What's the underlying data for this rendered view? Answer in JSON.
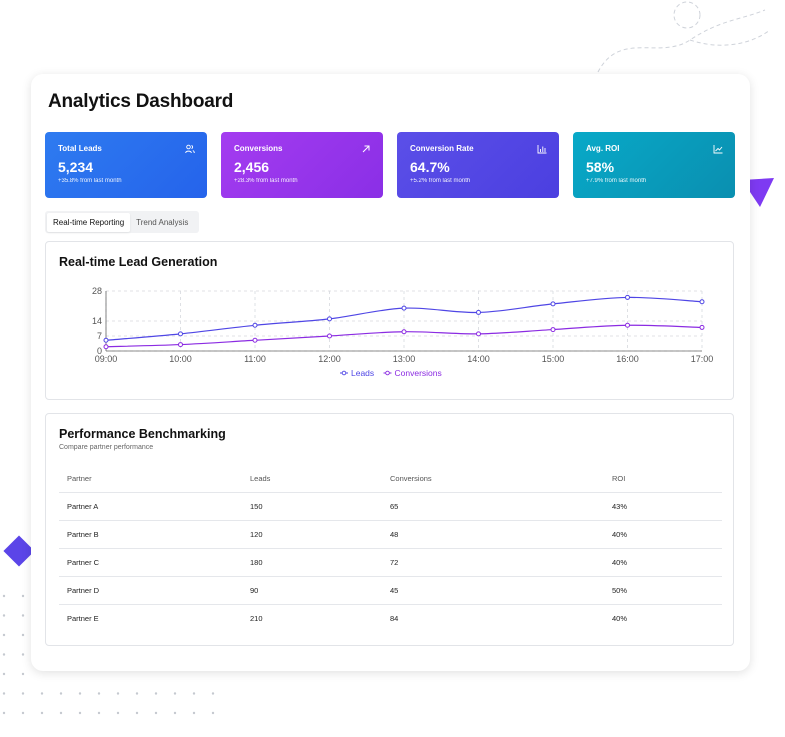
{
  "page_title": "Analytics Dashboard",
  "colors": {
    "leads": "#4f46e5",
    "conversions": "#8b2be2",
    "accent": "#5b45e8"
  },
  "stats": [
    {
      "label": "Total Leads",
      "value": "5,234",
      "change": "+35.8% from last month",
      "icon": "users-icon"
    },
    {
      "label": "Conversions",
      "value": "2,456",
      "change": "+28.3% from last month",
      "icon": "arrow-up-right-icon"
    },
    {
      "label": "Conversion Rate",
      "value": "64.7%",
      "change": "+5.2% from last month",
      "icon": "bar-chart-icon"
    },
    {
      "label": "Avg. ROI",
      "value": "58%",
      "change": "+7.9% from last month",
      "icon": "line-chart-icon"
    }
  ],
  "tabs": [
    {
      "label": "Real-time Reporting",
      "active": true
    },
    {
      "label": "Trend Analysis",
      "active": false
    }
  ],
  "realtime": {
    "title": "Real-time Lead Generation"
  },
  "chart_data": {
    "type": "line",
    "x": [
      "09:00",
      "10:00",
      "11:00",
      "12:00",
      "13:00",
      "14:00",
      "15:00",
      "16:00",
      "17:00"
    ],
    "yticks": [
      0,
      7,
      14,
      28
    ],
    "ylim": [
      0,
      28
    ],
    "grid": true,
    "legend": "bottom",
    "series": [
      {
        "name": "Leads",
        "values": [
          5,
          8,
          12,
          15,
          20,
          18,
          22,
          25,
          23
        ]
      },
      {
        "name": "Conversions",
        "values": [
          2,
          3,
          5,
          7,
          9,
          8,
          10,
          12,
          11
        ]
      }
    ]
  },
  "benchmark": {
    "title": "Performance Benchmarking",
    "subtitle": "Compare partner performance",
    "columns": [
      "Partner",
      "Leads",
      "Conversions",
      "ROI"
    ],
    "rows": [
      [
        "Partner A",
        "150",
        "65",
        "43%"
      ],
      [
        "Partner B",
        "120",
        "48",
        "40%"
      ],
      [
        "Partner C",
        "180",
        "72",
        "40%"
      ],
      [
        "Partner D",
        "90",
        "45",
        "50%"
      ],
      [
        "Partner E",
        "210",
        "84",
        "40%"
      ]
    ]
  }
}
